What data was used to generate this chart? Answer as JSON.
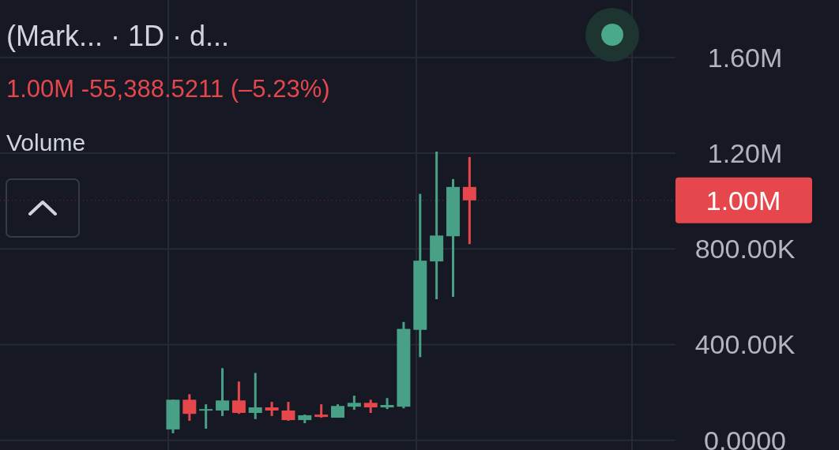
{
  "chart_data": {
    "type": "candlestick",
    "title": "(Mark...  · 1D · d...",
    "subtitle": "1.00M  -55,388.5211 (–5.23%)",
    "annotations": [
      "Volume"
    ],
    "categories": [
      null,
      null,
      null,
      null,
      null,
      null,
      null,
      null,
      null,
      null,
      null,
      null,
      null,
      null,
      null,
      null,
      null,
      null,
      null,
      null,
      null,
      null,
      null,
      null,
      null,
      null,
      null,
      null,
      null,
      null,
      null,
      null,
      null,
      null,
      null,
      null,
      null,
      null,
      null,
      null,
      null
    ],
    "ohlc": [
      null,
      null,
      null,
      null,
      null,
      null,
      null,
      null,
      null,
      null,
      [
        46000,
        170000,
        30000,
        170000
      ],
      [
        170000,
        193000,
        82000,
        111000
      ],
      [
        125000,
        151000,
        49000,
        131000
      ],
      [
        125000,
        302000,
        102000,
        167000
      ],
      [
        167000,
        246000,
        111000,
        115000
      ],
      [
        115000,
        282000,
        89000,
        138000
      ],
      [
        138000,
        161000,
        102000,
        125000
      ],
      [
        125000,
        161000,
        82000,
        85000
      ],
      [
        85000,
        108000,
        72000,
        105000
      ],
      [
        108000,
        151000,
        95000,
        98000
      ],
      [
        95000,
        151000,
        95000,
        144000
      ],
      [
        141000,
        187000,
        128000,
        157000
      ],
      [
        157000,
        170000,
        115000,
        138000
      ],
      [
        138000,
        177000,
        131000,
        148000
      ],
      [
        141000,
        495000,
        134000,
        466000
      ],
      [
        462000,
        1030000,
        348000,
        751000
      ],
      [
        748000,
        1207000,
        590000,
        856000
      ],
      [
        853000,
        1092000,
        600000,
        1059000
      ],
      [
        1059000,
        1184000,
        820000,
        1003000
      ],
      null,
      null,
      null,
      null,
      null,
      null,
      null,
      null,
      null,
      null,
      null,
      null
    ],
    "colors": [
      null,
      null,
      null,
      null,
      null,
      null,
      null,
      null,
      null,
      null,
      "#48a086",
      "#e5474d",
      "#48a086",
      "#48a086",
      "#e5474d",
      "#48a086",
      "#e5474d",
      "#e5474d",
      "#48a086",
      "#e5474d",
      "#48a086",
      "#48a086",
      "#e5474d",
      "#48a086",
      "#48a086",
      "#48a086",
      "#48a086",
      "#48a086",
      "#e5474d",
      null,
      null,
      null,
      null,
      null,
      null,
      null,
      null,
      null,
      null,
      null,
      null
    ],
    "ylim": [
      -40000,
      1840000
    ],
    "yticks": [
      {
        "value": 0,
        "label": "0.0000"
      },
      {
        "value": 400000,
        "label": "400.00K"
      },
      {
        "value": 800000,
        "label": "800.00K"
      },
      {
        "value": 1200000,
        "label": "1.20M"
      },
      {
        "value": 1600000,
        "label": "1.60M"
      }
    ],
    "ref_lines": [
      {
        "axis": "y",
        "value": 1003000,
        "label": "1.00M",
        "color": "#e5474d"
      }
    ],
    "grid": true,
    "tick_labels": "y"
  }
}
